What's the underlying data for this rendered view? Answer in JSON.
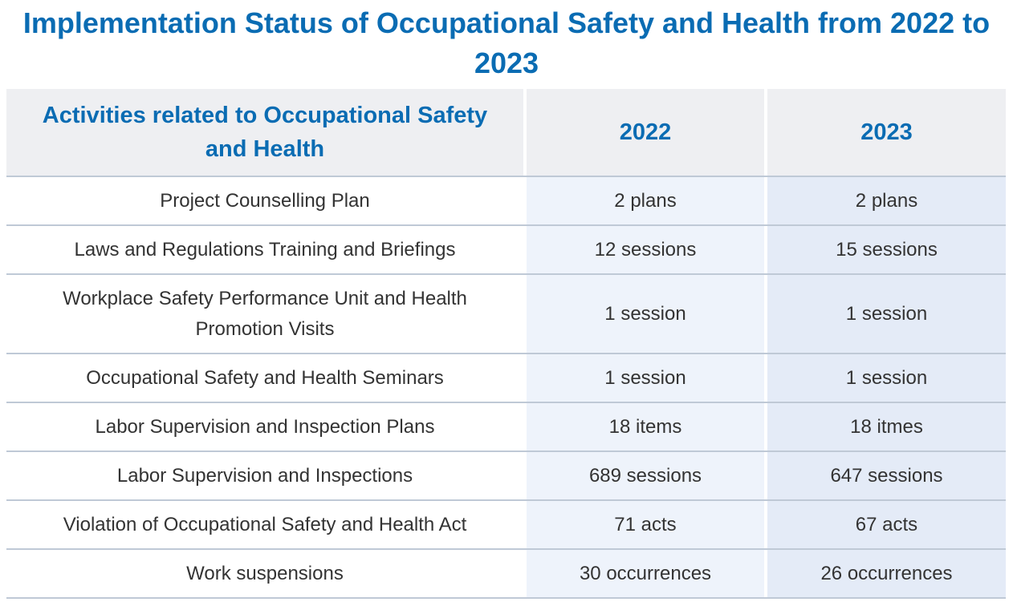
{
  "title": "Implementation Status of Occupational Safety and Health from 2022 to 2023",
  "table": {
    "headers": {
      "activity": "Activities related to Occupational Safety and Health",
      "y2022": "2022",
      "y2023": "2023"
    },
    "rows": [
      {
        "activity": "Project Counselling Plan",
        "y2022": "2 plans",
        "y2023": "2 plans"
      },
      {
        "activity": "Laws and Regulations Training and Briefings",
        "y2022": "12 sessions",
        "y2023": "15 sessions"
      },
      {
        "activity": "Workplace Safety Performance Unit and Health Promotion Visits",
        "y2022": "1 session",
        "y2023": "1 session"
      },
      {
        "activity": "Occupational Safety and Health Seminars",
        "y2022": "1 session",
        "y2023": "1 session"
      },
      {
        "activity": "Labor Supervision and Inspection Plans",
        "y2022": "18 items",
        "y2023": "18 itmes"
      },
      {
        "activity": "Labor Supervision and Inspections",
        "y2022": "689 sessions",
        "y2023": "647 sessions"
      },
      {
        "activity": "Violation of Occupational Safety and Health Act",
        "y2022": "71 acts",
        "y2023": "67 acts"
      },
      {
        "activity": "Work suspensions",
        "y2022": "30 occurrences",
        "y2023": "26 occurrences"
      }
    ]
  },
  "colors": {
    "accent": "#0a6cb3",
    "header_bg": "#eeeff2",
    "col_2022_bg": "#eef3fb",
    "col_2023_bg": "#e4ebf7",
    "row_border": "#bfc9d6",
    "text": "#333333"
  }
}
